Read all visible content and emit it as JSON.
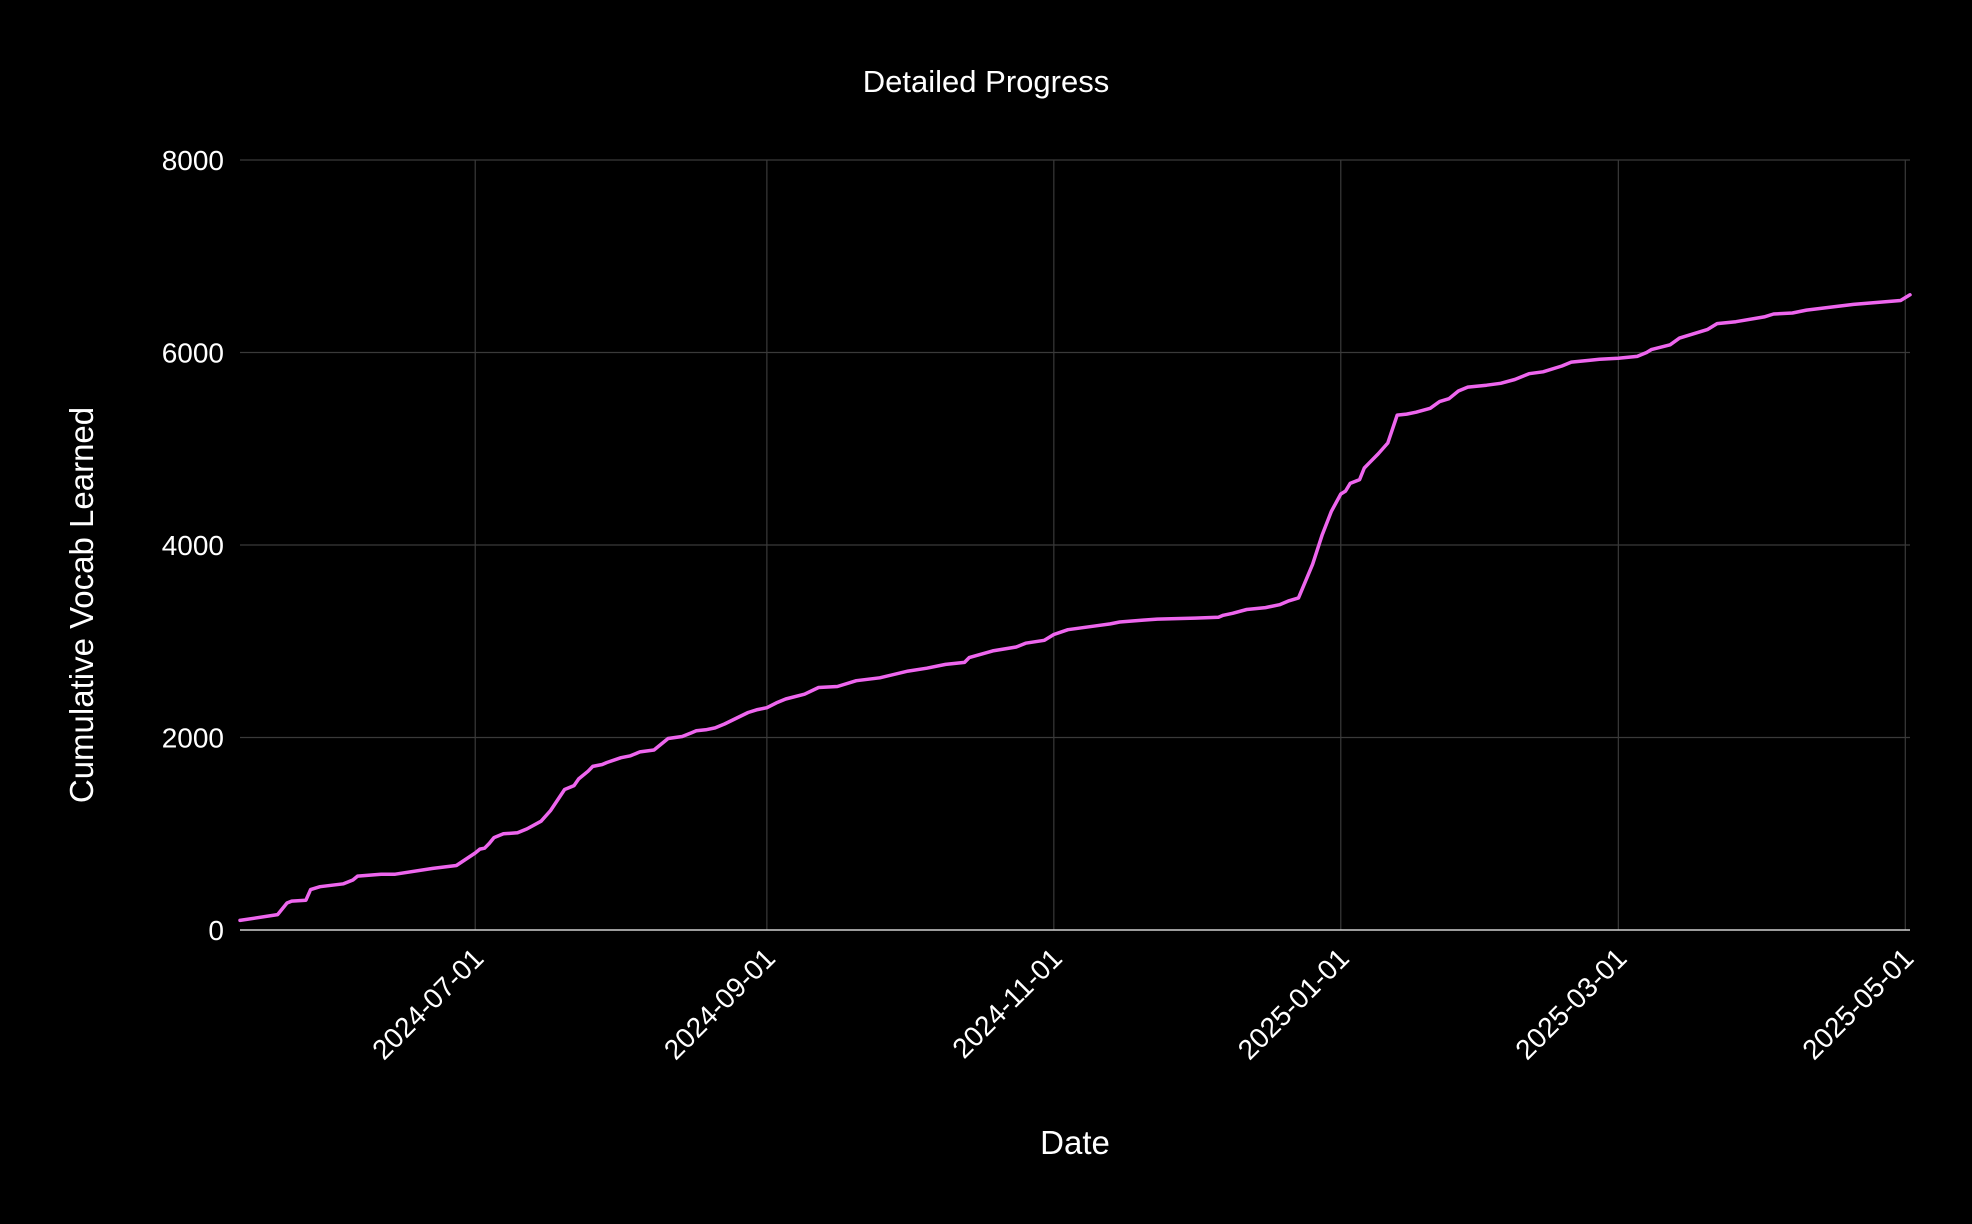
{
  "chart_data": {
    "type": "line",
    "title": "Detailed Progress",
    "xlabel": "Date",
    "ylabel": "Cumulative Vocab Learned",
    "x_type": "date",
    "xlim": [
      "2024-05-12",
      "2025-05-02"
    ],
    "ylim": [
      0,
      8000
    ],
    "x_ticks": [
      "2024-07-01",
      "2024-09-01",
      "2024-11-01",
      "2025-01-01",
      "2025-03-01",
      "2025-05-01"
    ],
    "y_ticks": [
      0,
      2000,
      4000,
      6000,
      8000
    ],
    "grid": true,
    "legend": "none",
    "colors": {
      "background": "#000000",
      "line": "#ee66ee",
      "grid": "#3a3a3a",
      "text": "#ffffff"
    },
    "series": [
      {
        "x": [
          "2024-05-12",
          "2024-05-20",
          "2024-05-22",
          "2024-05-23",
          "2024-05-26",
          "2024-05-27",
          "2024-05-29",
          "2024-06-03",
          "2024-06-05",
          "2024-06-06",
          "2024-06-11",
          "2024-06-14",
          "2024-06-22",
          "2024-06-27",
          "2024-07-01",
          "2024-07-02",
          "2024-07-03",
          "2024-07-04",
          "2024-07-05",
          "2024-07-07",
          "2024-07-10",
          "2024-07-12",
          "2024-07-15",
          "2024-07-17",
          "2024-07-20",
          "2024-07-22",
          "2024-07-23",
          "2024-07-25",
          "2024-07-26",
          "2024-07-28",
          "2024-07-29",
          "2024-08-01",
          "2024-08-03",
          "2024-08-05",
          "2024-08-08",
          "2024-08-11",
          "2024-08-14",
          "2024-08-16",
          "2024-08-17",
          "2024-08-19",
          "2024-08-21",
          "2024-08-23",
          "2024-08-28",
          "2024-08-30",
          "2024-09-01",
          "2024-09-03",
          "2024-09-05",
          "2024-09-09",
          "2024-09-12",
          "2024-09-16",
          "2024-09-20",
          "2024-09-25",
          "2024-10-01",
          "2024-10-05",
          "2024-10-09",
          "2024-10-13",
          "2024-10-14",
          "2024-10-19",
          "2024-10-24",
          "2024-10-26",
          "2024-10-30",
          "2024-11-01",
          "2024-11-04",
          "2024-11-10",
          "2024-11-13",
          "2024-11-15",
          "2024-11-20",
          "2024-11-23",
          "2024-12-01",
          "2024-12-06",
          "2024-12-07",
          "2024-12-09",
          "2024-12-12",
          "2024-12-16",
          "2024-12-19",
          "2024-12-21",
          "2024-12-23",
          "2024-12-26",
          "2024-12-28",
          "2024-12-30",
          "2025-01-01",
          "2025-01-02",
          "2025-01-03",
          "2025-01-05",
          "2025-01-06",
          "2025-01-07",
          "2025-01-09",
          "2025-01-11",
          "2025-01-13",
          "2025-01-15",
          "2025-01-17",
          "2025-01-20",
          "2025-01-22",
          "2025-01-24",
          "2025-01-26",
          "2025-01-28",
          "2025-02-01",
          "2025-02-04",
          "2025-02-07",
          "2025-02-10",
          "2025-02-13",
          "2025-02-17",
          "2025-02-19",
          "2025-02-23",
          "2025-02-25",
          "2025-03-01",
          "2025-03-05",
          "2025-03-07",
          "2025-03-08",
          "2025-03-12",
          "2025-03-14",
          "2025-03-20",
          "2025-03-22",
          "2025-03-26",
          "2025-04-01",
          "2025-04-03",
          "2025-04-07",
          "2025-04-10",
          "2025-04-20",
          "2025-04-30",
          "2025-05-02"
        ],
        "y": [
          100,
          160,
          280,
          300,
          310,
          420,
          450,
          480,
          520,
          560,
          580,
          580,
          640,
          670,
          800,
          840,
          850,
          900,
          960,
          1000,
          1010,
          1050,
          1130,
          1240,
          1460,
          1500,
          1570,
          1650,
          1700,
          1720,
          1740,
          1790,
          1810,
          1850,
          1870,
          1990,
          2010,
          2050,
          2070,
          2080,
          2100,
          2140,
          2260,
          2290,
          2310,
          2360,
          2400,
          2450,
          2520,
          2530,
          2590,
          2620,
          2690,
          2720,
          2760,
          2780,
          2830,
          2900,
          2940,
          2980,
          3010,
          3070,
          3120,
          3160,
          3180,
          3200,
          3220,
          3230,
          3240,
          3250,
          3270,
          3290,
          3330,
          3350,
          3380,
          3420,
          3450,
          3800,
          4100,
          4350,
          4530,
          4560,
          4640,
          4680,
          4800,
          4850,
          4950,
          5060,
          5350,
          5360,
          5380,
          5420,
          5490,
          5520,
          5600,
          5640,
          5660,
          5680,
          5720,
          5780,
          5800,
          5860,
          5900,
          5920,
          5930,
          5940,
          5960,
          6000,
          6030,
          6080,
          6150,
          6240,
          6300,
          6320,
          6370,
          6400,
          6410,
          6440,
          6500,
          6540,
          6600
        ]
      }
    ]
  }
}
